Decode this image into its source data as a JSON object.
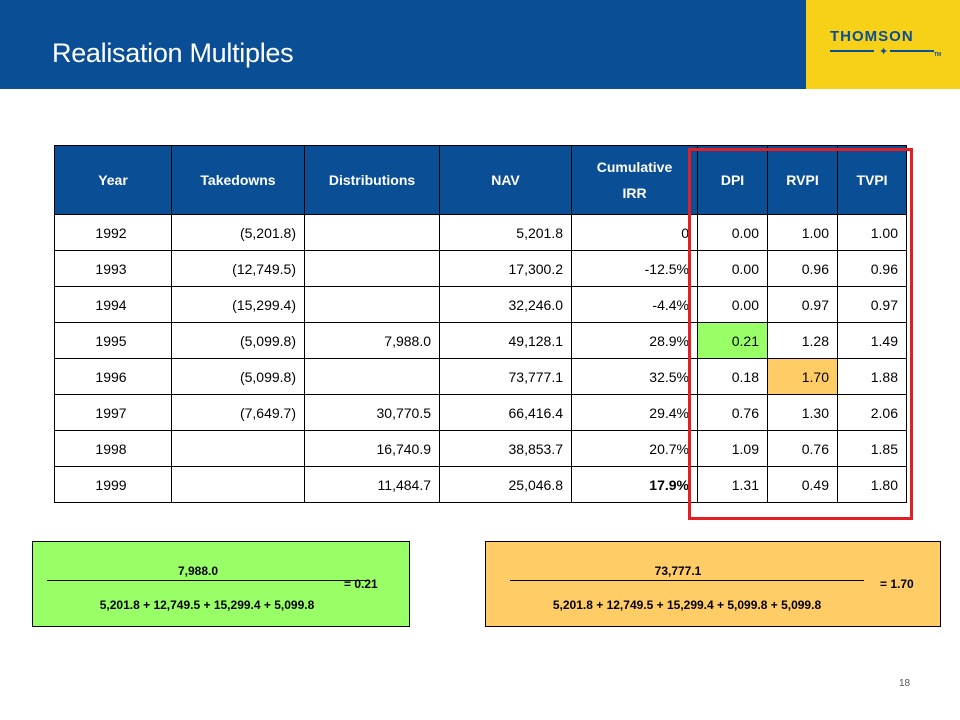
{
  "header": {
    "title": "Realisation Multiples",
    "logo_text": "THOMSON",
    "logo_tm": "TM",
    "bar_color": "#0a4f95",
    "brand_color": "#f7d117"
  },
  "table": {
    "columns": [
      "Year",
      "Takedowns",
      "Distributions",
      "NAV",
      "Cumulative IRR",
      "DPI",
      "RVPI",
      "TVPI"
    ],
    "rows": [
      [
        "1992",
        "(5,201.8)",
        "",
        "5,201.8",
        "0",
        "0.00",
        "1.00",
        "1.00"
      ],
      [
        "1993",
        "(12,749.5)",
        "",
        "17,300.2",
        "-12.5%",
        "0.00",
        "0.96",
        "0.96"
      ],
      [
        "1994",
        "(15,299.4)",
        "",
        "32,246.0",
        "-4.4%",
        "0.00",
        "0.97",
        "0.97"
      ],
      [
        "1995",
        "(5,099.8)",
        "7,988.0",
        "49,128.1",
        "28.9%",
        "0.21",
        "1.28",
        "1.49"
      ],
      [
        "1996",
        "(5,099.8)",
        "",
        "73,777.1",
        "32.5%",
        "0.18",
        "1.70",
        "1.88"
      ],
      [
        "1997",
        "(7,649.7)",
        "30,770.5",
        "66,416.4",
        "29.4%",
        "0.76",
        "1.30",
        "2.06"
      ],
      [
        "1998",
        "",
        "16,740.9",
        "38,853.7",
        "20.7%",
        "1.09",
        "0.76",
        "1.85"
      ],
      [
        "1999",
        "",
        "11,484.7",
        "25,046.8",
        "17.9%",
        "1.31",
        "0.49",
        "1.80"
      ]
    ],
    "highlight_green": "#99ff66",
    "highlight_orange": "#ffcc66",
    "highlight_box_color": "#e31e24"
  },
  "calc_dpi": {
    "numerator": "7,988.0",
    "denominator": "5,201.8 + 12,749.5 + 15,299.4 + 5,099.8",
    "result": "= 0.21",
    "color": "#99ff66"
  },
  "calc_rvpi": {
    "numerator": "73,777.1",
    "denominator": "5,201.8 + 12,749.5 + 15,299.4 + 5,099.8 + 5,099.8",
    "result": "= 1.70",
    "color": "#ffcc66"
  },
  "footer": {
    "page_number": "18"
  }
}
